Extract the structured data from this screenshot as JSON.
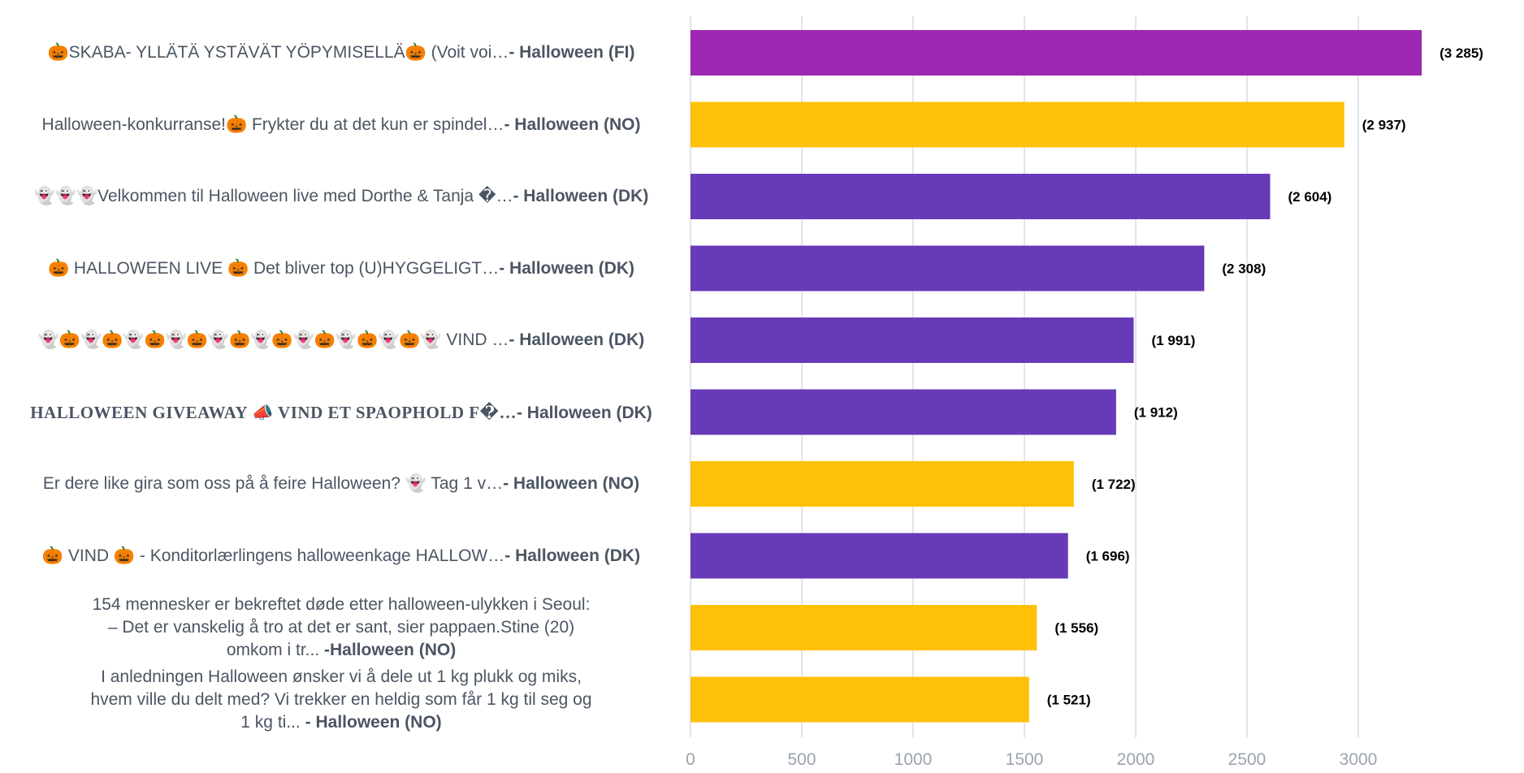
{
  "chart_data": {
    "type": "bar",
    "orientation": "horizontal",
    "title": "",
    "xlabel": "",
    "ylabel": "",
    "xlim": [
      0,
      3600
    ],
    "x_ticks": [
      0,
      500,
      1000,
      1500,
      2000,
      2500,
      3000
    ],
    "x_tick_labels": [
      "0",
      "500",
      "1000",
      "1500",
      "2000",
      "2500",
      "3000"
    ],
    "grid": true,
    "legend": "none",
    "categories": [
      {
        "title": "🎃SKABA- YLLÄTÄ YSTÄVÄT YÖPYMISELLÄ🎃 (Voit voi…",
        "tag": "- Halloween (FI)",
        "value": 3285,
        "value_label": "(3 285)",
        "color": "#9c27b0"
      },
      {
        "title": "Halloween-konkurranse!🎃 Frykter du at det kun er spindel…",
        "tag": "- Halloween (NO)",
        "value": 2937,
        "value_label": "(2 937)",
        "color": "#ffc107"
      },
      {
        "title": "👻👻👻Velkommen til Halloween live med Dorthe & Tanja �…",
        "tag": "- Halloween (DK)",
        "value": 2604,
        "value_label": "(2 604)",
        "color": "#673ab7"
      },
      {
        "title": "🎃 HALLOWEEN LIVE 🎃 Det bliver top (U)HYGGELIGT…",
        "tag": "- Halloween (DK)",
        "value": 2308,
        "value_label": "(2 308)",
        "color": "#673ab7"
      },
      {
        "title": "👻🎃👻🎃👻🎃👻🎃👻🎃👻🎃👻🎃👻🎃👻🎃👻 VIND …",
        "tag": "- Halloween (DK)",
        "value": 1991,
        "value_label": "(1 991)",
        "color": "#673ab7"
      },
      {
        "title": "HALLOWEEN GIVEAWAY 📣 VIND ET SPAOPHOLD F�…",
        "tag": "- Halloween (DK)",
        "value": 1912,
        "value_label": "(1 912)",
        "color": "#673ab7"
      },
      {
        "title": "Er dere like gira som oss på å feire Halloween? 👻 Tag 1 v…",
        "tag": "- Halloween (NO)",
        "value": 1722,
        "value_label": "(1 722)",
        "color": "#ffc107"
      },
      {
        "title": "🎃 VIND 🎃 - Konditorlærlingens halloweenkage HALLOW…",
        "tag": "- Halloween (DK)",
        "value": 1696,
        "value_label": "(1 696)",
        "color": "#673ab7"
      },
      {
        "title": "154 mennesker er bekreftet døde etter halloween-ulykken i Seoul: – Det er vanskelig å tro at det er sant, sier pappaen.Stine (20) omkom i tr...",
        "tag": " -Halloween (NO)",
        "value": 1556,
        "value_label": "(1 556)",
        "color": "#ffc107"
      },
      {
        "title": "I anledningen Halloween ønsker vi å dele ut 1 kg plukk og miks, hvem ville du delt med? Vi trekker en heldig som får 1 kg til seg og 1 kg ti...",
        "tag": " - Halloween (NO)",
        "value": 1521,
        "value_label": "(1 521)",
        "color": "#ffc107"
      }
    ]
  },
  "colors": {
    "gridline": "#d9dbe8",
    "axis_tick_text": "#9ca3af",
    "label_text": "#4b5563",
    "value_text": "#000000"
  }
}
